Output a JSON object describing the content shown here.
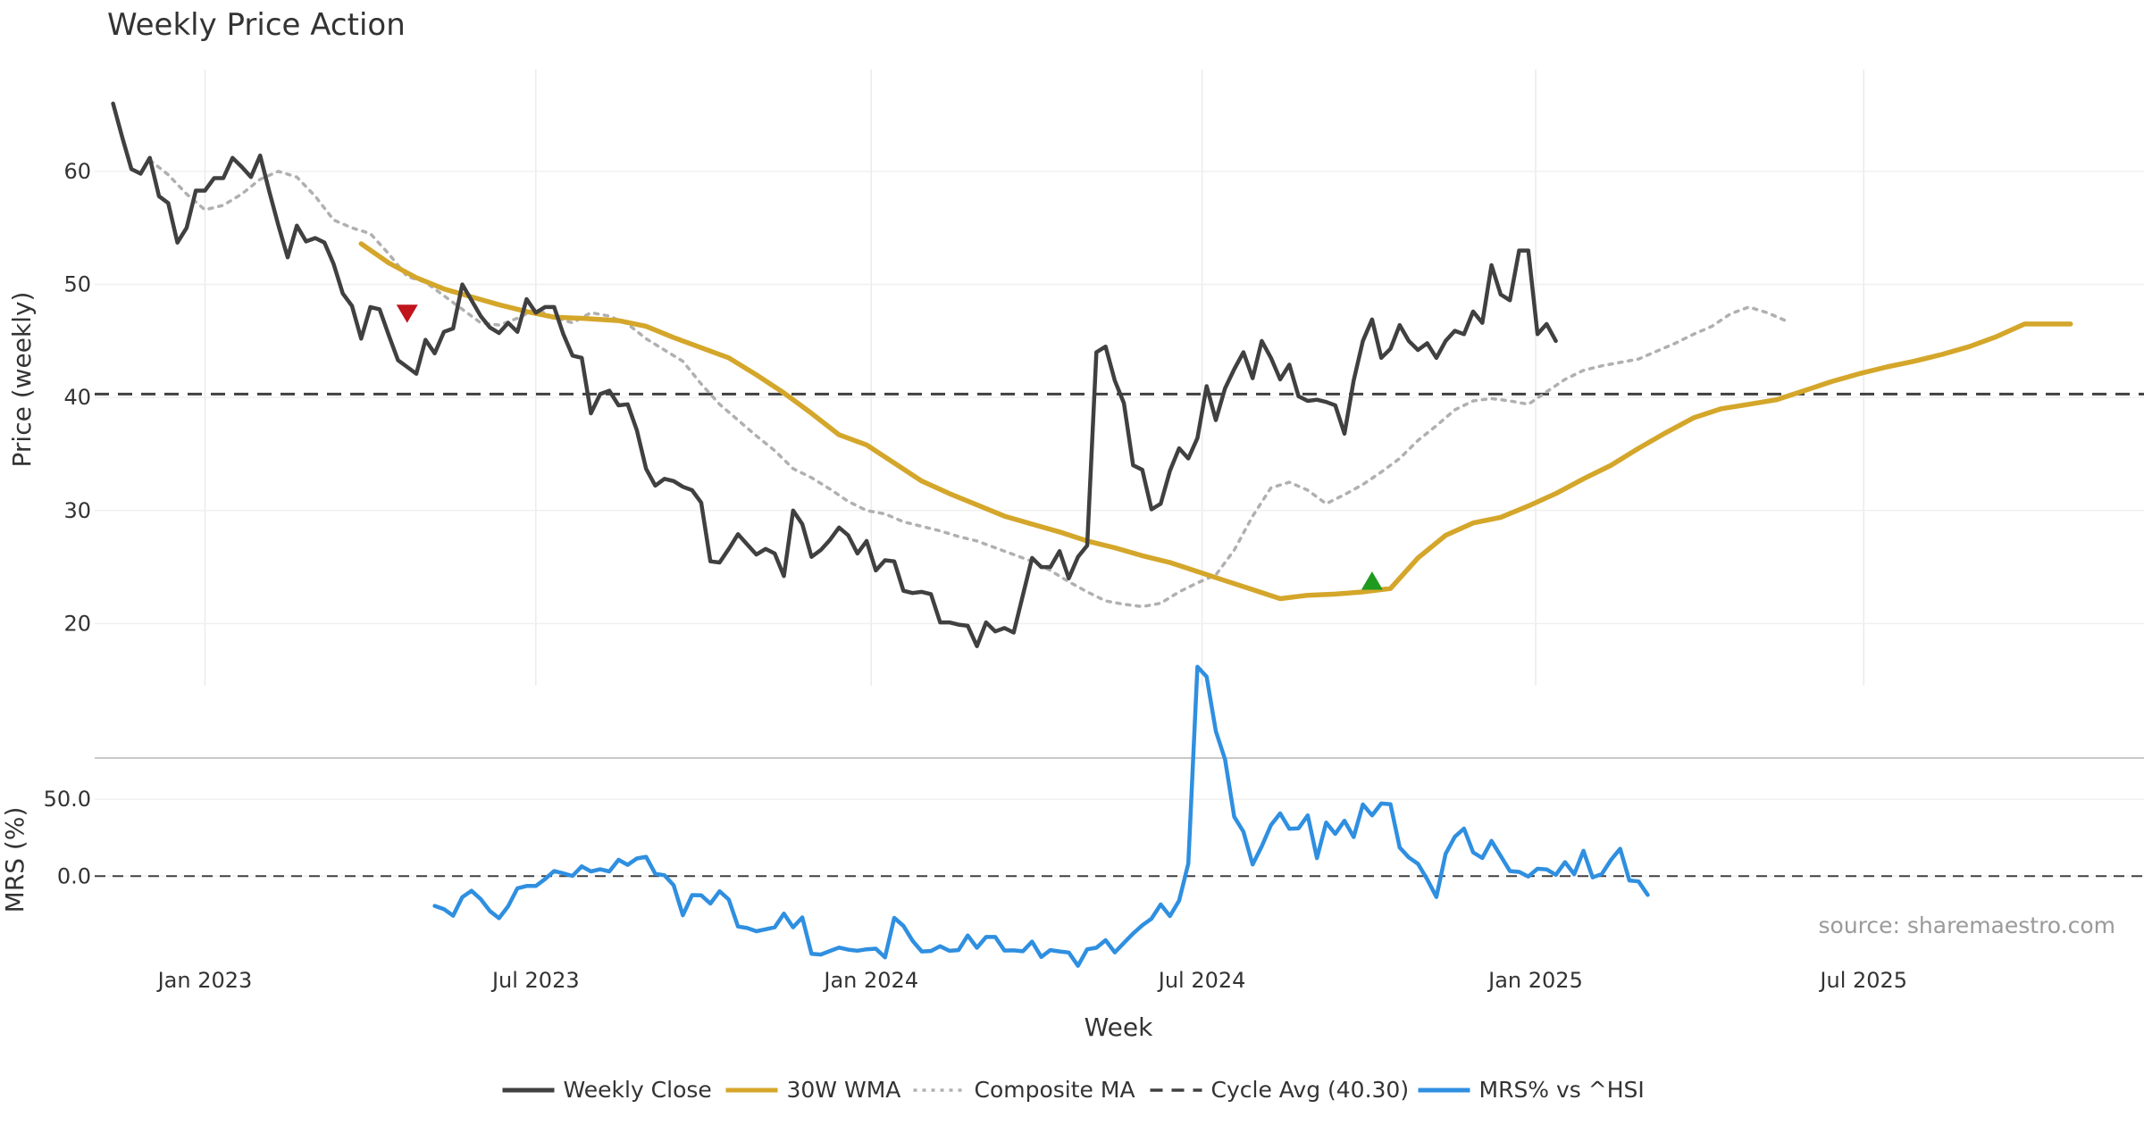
{
  "chart_data": {
    "type": "line",
    "title": "Weekly Price Action",
    "xlabel": "Week",
    "source": "source: sharemaestro.com",
    "x_ticks": [
      "Jan 2023",
      "Jul 2023",
      "Jan 2024",
      "Jul 2024",
      "Jan 2025",
      "Jul 2025"
    ],
    "x_tick_weeks": [
      10,
      46,
      82.5,
      118.5,
      154.8,
      190.5
    ],
    "week_range": [
      -2,
      221
    ],
    "price_panel": {
      "ylabel": "Price (weekly)",
      "ylim": [
        14.5,
        69
      ],
      "yticks": [
        20,
        30,
        40,
        50,
        60
      ],
      "ytick_labels": [
        "20",
        "30",
        "40",
        "50",
        "60"
      ],
      "grid": true
    },
    "mrs_panel": {
      "ylabel": "MRS (%)",
      "ylim": [
        -41,
        75
      ],
      "yticks": [
        0,
        50
      ],
      "ytick_labels": [
        "0.0",
        "50.0"
      ],
      "zero_line": true
    },
    "cycle_avg": 40.3,
    "series": [
      {
        "name": "Weekly Close",
        "color": "#404040",
        "style": "solid",
        "panel": "price",
        "x0": 0,
        "values": [
          66,
          63,
          60.2,
          59.8,
          61.2,
          57.8,
          57.2,
          53.7,
          55,
          58.3,
          58.3,
          59.4,
          59.4,
          61.2,
          60.4,
          59.5,
          61.4,
          58.2,
          55.2,
          52.4,
          55.2,
          53.8,
          54.1,
          53.7,
          51.8,
          49.2,
          48.1,
          45.2,
          48,
          47.8,
          45.5,
          43.3,
          42.7,
          42.1,
          45.1,
          43.9,
          45.8,
          46.1,
          50,
          48.6,
          47.2,
          46.2,
          45.7,
          46.6,
          45.8,
          48.7,
          47.5,
          48,
          48,
          45.6,
          43.7,
          43.5,
          38.6,
          40.3,
          40.6,
          39.3,
          39.4,
          37.1,
          33.7,
          32.2,
          32.8,
          32.6,
          32.1,
          31.8,
          30.7,
          25.5,
          25.4,
          26.6,
          27.9,
          27,
          26.1,
          26.6,
          26.2,
          24.2,
          30,
          28.8,
          25.9,
          26.5,
          27.4,
          28.5,
          27.8,
          26.2,
          27.3,
          24.7,
          25.6,
          25.5,
          22.9,
          22.7,
          22.8,
          22.6,
          20.1,
          20.1,
          19.9,
          19.8,
          18,
          20.1,
          19.3,
          19.6,
          19.2,
          22.5,
          25.8,
          25,
          25,
          26.4,
          24,
          25.9,
          26.9,
          44,
          44.5,
          41.5,
          39.5,
          34,
          33.6,
          30.1,
          30.6,
          33.5,
          35.5,
          34.6,
          36.4,
          41,
          38,
          40.8,
          42.5,
          44,
          41.7,
          45,
          43.5,
          41.6,
          42.9,
          40.1,
          39.7,
          39.8,
          39.6,
          39.3,
          36.8,
          41.5,
          45,
          46.9,
          43.5,
          44.3,
          46.4,
          45,
          44.2,
          44.8,
          43.5,
          45,
          45.9,
          45.6,
          47.6,
          46.6,
          51.7,
          49.1,
          48.6,
          53,
          53,
          45.6,
          46.5,
          45
        ]
      },
      {
        "name": "30W WMA",
        "color": "#d4a62a",
        "style": "solid",
        "panel": "price",
        "points": [
          [
            27,
            53.6
          ],
          [
            30,
            51.9
          ],
          [
            33,
            50.6
          ],
          [
            36,
            49.6
          ],
          [
            39,
            48.9
          ],
          [
            42,
            48.2
          ],
          [
            45,
            47.6
          ],
          [
            48,
            47.1
          ],
          [
            51,
            47
          ],
          [
            55,
            46.8
          ],
          [
            58,
            46.3
          ],
          [
            61,
            45.3
          ],
          [
            64,
            44.4
          ],
          [
            67,
            43.5
          ],
          [
            70,
            42
          ],
          [
            73,
            40.4
          ],
          [
            76,
            38.6
          ],
          [
            79,
            36.7
          ],
          [
            82,
            35.8
          ],
          [
            85,
            34.2
          ],
          [
            88,
            32.6
          ],
          [
            91,
            31.5
          ],
          [
            94,
            30.5
          ],
          [
            97,
            29.5
          ],
          [
            100,
            28.8
          ],
          [
            103,
            28.1
          ],
          [
            106,
            27.3
          ],
          [
            109,
            26.7
          ],
          [
            112,
            26
          ],
          [
            115,
            25.4
          ],
          [
            118,
            24.6
          ],
          [
            121,
            23.8
          ],
          [
            124,
            23
          ],
          [
            127,
            22.2
          ],
          [
            130,
            22.5
          ],
          [
            133,
            22.6
          ],
          [
            136,
            22.8
          ],
          [
            139,
            23.1
          ],
          [
            142,
            25.8
          ],
          [
            145,
            27.8
          ],
          [
            148,
            28.9
          ],
          [
            151,
            29.4
          ],
          [
            154,
            30.4
          ],
          [
            157,
            31.5
          ],
          [
            160,
            32.8
          ],
          [
            163,
            34
          ],
          [
            166,
            35.5
          ],
          [
            169,
            36.9
          ],
          [
            172,
            38.2
          ],
          [
            175,
            39
          ],
          [
            178,
            39.4
          ],
          [
            181,
            39.8
          ],
          [
            184,
            40.6
          ],
          [
            187,
            41.4
          ],
          [
            190,
            42.1
          ],
          [
            193,
            42.7
          ],
          [
            196,
            43.2
          ],
          [
            199,
            43.8
          ],
          [
            202,
            44.5
          ],
          [
            205,
            45.4
          ],
          [
            208,
            46.5
          ],
          [
            211,
            46.5
          ],
          [
            213,
            46.5
          ]
        ]
      },
      {
        "name": "Composite MA",
        "color": "#b0b0b0",
        "style": "dotted",
        "panel": "price",
        "points": [
          [
            4,
            61
          ],
          [
            6,
            59.7
          ],
          [
            8,
            58
          ],
          [
            10,
            56.6
          ],
          [
            12,
            57
          ],
          [
            14,
            58
          ],
          [
            16,
            59.3
          ],
          [
            18,
            60
          ],
          [
            20,
            59.5
          ],
          [
            22,
            57.8
          ],
          [
            24,
            55.7
          ],
          [
            26,
            55
          ],
          [
            28,
            54.5
          ],
          [
            30,
            52.7
          ],
          [
            32,
            50.7
          ],
          [
            34,
            50.2
          ],
          [
            36,
            49
          ],
          [
            38,
            47.8
          ],
          [
            40,
            46.6
          ],
          [
            42,
            46.4
          ],
          [
            44,
            47
          ],
          [
            46,
            47.8
          ],
          [
            48,
            47.1
          ],
          [
            50,
            46.6
          ],
          [
            52,
            47.5
          ],
          [
            54,
            47.2
          ],
          [
            56,
            46.5
          ],
          [
            58,
            45.2
          ],
          [
            60,
            44.2
          ],
          [
            62,
            43.2
          ],
          [
            64,
            41.2
          ],
          [
            66,
            39.4
          ],
          [
            68,
            38
          ],
          [
            70,
            36.6
          ],
          [
            72,
            35.3
          ],
          [
            74,
            33.7
          ],
          [
            76,
            32.9
          ],
          [
            78,
            31.9
          ],
          [
            80,
            30.8
          ],
          [
            82,
            30
          ],
          [
            84,
            29.7
          ],
          [
            86,
            29
          ],
          [
            88,
            28.6
          ],
          [
            90,
            28.2
          ],
          [
            92,
            27.7
          ],
          [
            94,
            27.3
          ],
          [
            96,
            26.7
          ],
          [
            98,
            26.1
          ],
          [
            100,
            25.5
          ],
          [
            102,
            24.7
          ],
          [
            104,
            23.7
          ],
          [
            106,
            22.8
          ],
          [
            108,
            22
          ],
          [
            110,
            21.7
          ],
          [
            112,
            21.5
          ],
          [
            114,
            21.8
          ],
          [
            116,
            22.8
          ],
          [
            118,
            23.6
          ],
          [
            120,
            24.3
          ],
          [
            122,
            26.5
          ],
          [
            124,
            29.5
          ],
          [
            126,
            32
          ],
          [
            128,
            32.5
          ],
          [
            130,
            31.8
          ],
          [
            132,
            30.6
          ],
          [
            134,
            31.4
          ],
          [
            136,
            32.3
          ],
          [
            138,
            33.4
          ],
          [
            140,
            34.6
          ],
          [
            142,
            36.2
          ],
          [
            144,
            37.5
          ],
          [
            146,
            38.9
          ],
          [
            148,
            39.7
          ],
          [
            150,
            39.9
          ],
          [
            152,
            39.7
          ],
          [
            154,
            39.4
          ],
          [
            156,
            40.5
          ],
          [
            158,
            41.6
          ],
          [
            160,
            42.4
          ],
          [
            162,
            42.8
          ],
          [
            164,
            43.1
          ],
          [
            166,
            43.4
          ],
          [
            168,
            44.1
          ],
          [
            170,
            44.8
          ],
          [
            172,
            45.6
          ],
          [
            174,
            46.3
          ],
          [
            176,
            47.4
          ],
          [
            178,
            48
          ],
          [
            180,
            47.5
          ],
          [
            182,
            46.8
          ]
        ]
      },
      {
        "name": "MRS% vs ^HSI",
        "color": "#2f8fe0",
        "style": "solid",
        "panel": "mrs",
        "x0": 35,
        "values": [
          -19.3,
          -21.4,
          -25.7,
          -13.6,
          -9.5,
          -14.9,
          -22.6,
          -27.3,
          -19.5,
          -7.9,
          -6.4,
          -6.4,
          -1.9,
          3.3,
          1.8,
          0.2,
          6.4,
          3.1,
          4.5,
          3.1,
          10.6,
          7.4,
          11.5,
          12.6,
          1.6,
          0.6,
          -5.9,
          -25.4,
          -12.3,
          -12.4,
          -17.8,
          -9.8,
          -15.2,
          -32.7,
          -33.7,
          -35.8,
          -34.5,
          -33.2,
          -24.3,
          -33.2,
          -26.8,
          -50.4,
          -50.9,
          -48.6,
          -46.4,
          -47.7,
          -48.4,
          -47.5,
          -47.1,
          -52.8,
          -27.1,
          -32.3,
          -41.9,
          -48.9,
          -48.6,
          -45.5,
          -48.5,
          -48,
          -38.5,
          -46.5,
          -39.5,
          -39.5,
          -48.3,
          -48.2,
          -48.8,
          -42.5,
          -52.5,
          -48,
          -48.9,
          -49.6,
          -58.2,
          -47.5,
          -46.5,
          -41.6,
          -49.5,
          -43.4,
          -37.3,
          -31.9,
          -27.6,
          -18.4,
          -25.9,
          -15.9,
          8.2,
          136,
          129.6,
          94.2,
          75.9,
          38.6,
          28.9,
          7.6,
          19.4,
          33.2,
          40.8,
          30.8,
          31.1,
          39.5,
          11.7,
          34.8,
          27.5,
          36,
          25.4,
          46.6,
          39.5,
          47.2,
          46.7,
          18.6,
          12.2,
          8,
          -2,
          -13.5,
          14.5,
          25.6,
          30.9,
          15.5,
          11.8,
          22.9,
          13.1,
          3.3,
          2.8,
          -0.2,
          4.8,
          4.4,
          0.9,
          9.1,
          1.3,
          16.5,
          -0.8,
          1.4,
          10.6,
          17.8,
          -2.8,
          -3.4,
          -12.2
        ]
      }
    ],
    "markers": [
      {
        "type": "sell",
        "shape": "triangle-down",
        "color": "#c0151d",
        "x": 32,
        "y": 47.4
      },
      {
        "type": "buy",
        "shape": "triangle-up",
        "color": "#1f9a1f",
        "x": 137,
        "y": 23.8
      }
    ],
    "legend": {
      "placement": "bottom-center",
      "entries": [
        {
          "label": "Weekly Close",
          "color": "#404040",
          "style": "solid"
        },
        {
          "label": "30W WMA",
          "color": "#d4a62a",
          "style": "solid"
        },
        {
          "label": "Composite MA",
          "color": "#b0b0b0",
          "style": "dotted"
        },
        {
          "label": "Cycle Avg (40.30)",
          "color": "#404040",
          "style": "dashed"
        },
        {
          "label": "MRS% vs ^HSI",
          "color": "#2f8fe0",
          "style": "solid"
        }
      ]
    }
  }
}
